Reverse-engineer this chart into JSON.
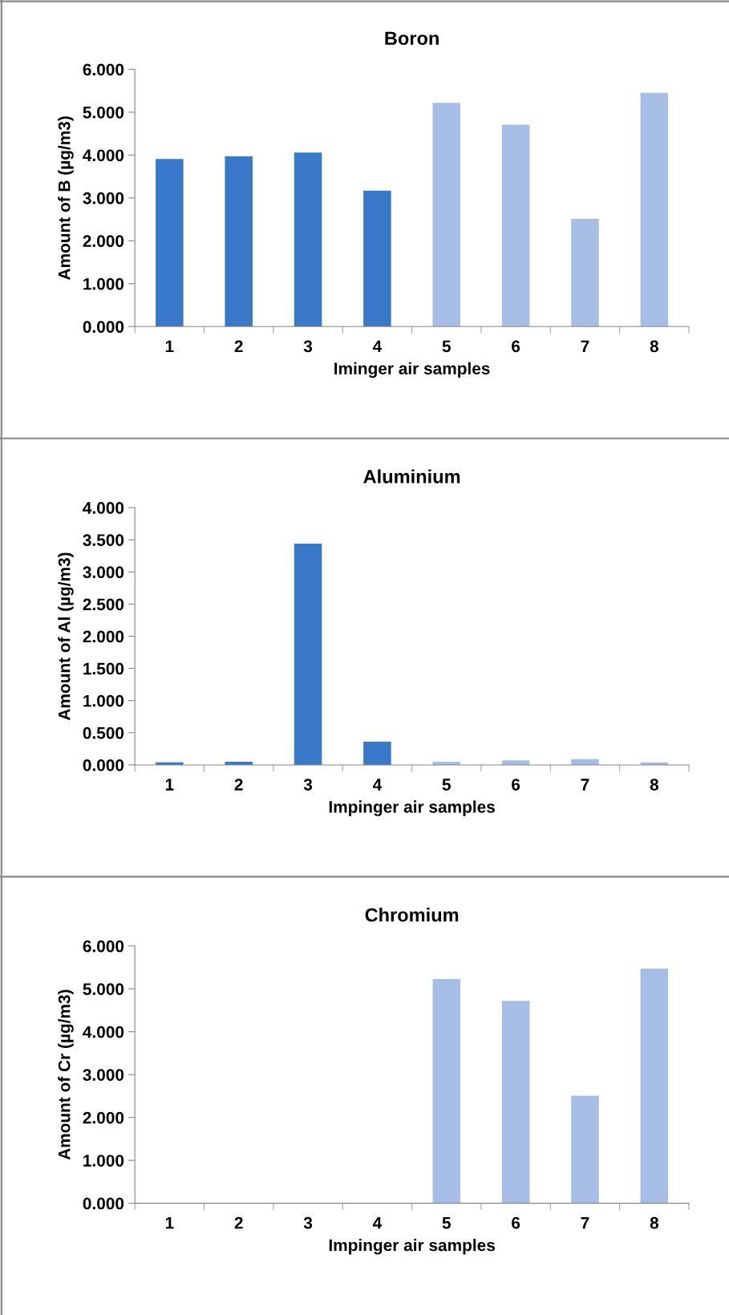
{
  "chart_data": [
    {
      "type": "bar",
      "title": "Boron",
      "xlabel": "Iminger air samples",
      "ylabel": "Amount of B (µg/m3)",
      "categories": [
        "1",
        "2",
        "3",
        "4",
        "5",
        "6",
        "7",
        "8"
      ],
      "values": [
        3.91,
        3.97,
        4.06,
        3.17,
        5.22,
        4.71,
        2.51,
        5.45
      ],
      "colors": [
        "#3a78c9",
        "#3a78c9",
        "#3a78c9",
        "#3a78c9",
        "#a6bde6",
        "#a6bde6",
        "#a6bde6",
        "#a6bde6"
      ],
      "ylim": [
        0,
        6
      ],
      "yticks": [
        {
          "value": 0,
          "label": "0.000"
        },
        {
          "value": 1,
          "label": "1.000"
        },
        {
          "value": 2,
          "label": "2.000"
        },
        {
          "value": 3,
          "label": "3.000"
        },
        {
          "value": 4,
          "label": "4.000"
        },
        {
          "value": 5,
          "label": "5.000"
        },
        {
          "value": 6,
          "label": "6.000"
        }
      ],
      "grid": false,
      "legend": false
    },
    {
      "type": "bar",
      "title": "Aluminium",
      "xlabel": "Impinger air samples",
      "ylabel": "Amount of Al (µg/m3)",
      "categories": [
        "1",
        "2",
        "3",
        "4",
        "5",
        "6",
        "7",
        "8"
      ],
      "values": [
        0.04,
        0.05,
        3.44,
        0.36,
        0.05,
        0.07,
        0.09,
        0.04
      ],
      "colors": [
        "#3a78c9",
        "#3a78c9",
        "#3a78c9",
        "#3a78c9",
        "#a6bde6",
        "#a6bde6",
        "#a6bde6",
        "#a6bde6"
      ],
      "ylim": [
        0,
        4
      ],
      "yticks": [
        {
          "value": 0,
          "label": "0.000"
        },
        {
          "value": 0.5,
          "label": "0.500"
        },
        {
          "value": 1,
          "label": "1.000"
        },
        {
          "value": 1.5,
          "label": "1.500"
        },
        {
          "value": 2,
          "label": "2.000"
        },
        {
          "value": 2.5,
          "label": "2.500"
        },
        {
          "value": 3,
          "label": "3.000"
        },
        {
          "value": 3.5,
          "label": "3.500"
        },
        {
          "value": 4,
          "label": "4.000"
        }
      ],
      "grid": false,
      "legend": false
    },
    {
      "type": "bar",
      "title": "Chromium",
      "xlabel": "Impinger air samples",
      "ylabel": "Amount of Cr (µg/m3)",
      "categories": [
        "1",
        "2",
        "3",
        "4",
        "5",
        "6",
        "7",
        "8"
      ],
      "values": [
        0,
        0,
        0,
        0,
        5.23,
        4.72,
        2.51,
        5.47
      ],
      "colors": [
        "#3a78c9",
        "#3a78c9",
        "#3a78c9",
        "#3a78c9",
        "#a6bde6",
        "#a6bde6",
        "#a6bde6",
        "#a6bde6"
      ],
      "ylim": [
        0,
        6
      ],
      "yticks": [
        {
          "value": 0,
          "label": "0.000"
        },
        {
          "value": 1,
          "label": "1.000"
        },
        {
          "value": 2,
          "label": "2.000"
        },
        {
          "value": 3,
          "label": "3.000"
        },
        {
          "value": 4,
          "label": "4.000"
        },
        {
          "value": 5,
          "label": "5.000"
        },
        {
          "value": 6,
          "label": "6.000"
        }
      ],
      "grid": false,
      "legend": false
    }
  ]
}
